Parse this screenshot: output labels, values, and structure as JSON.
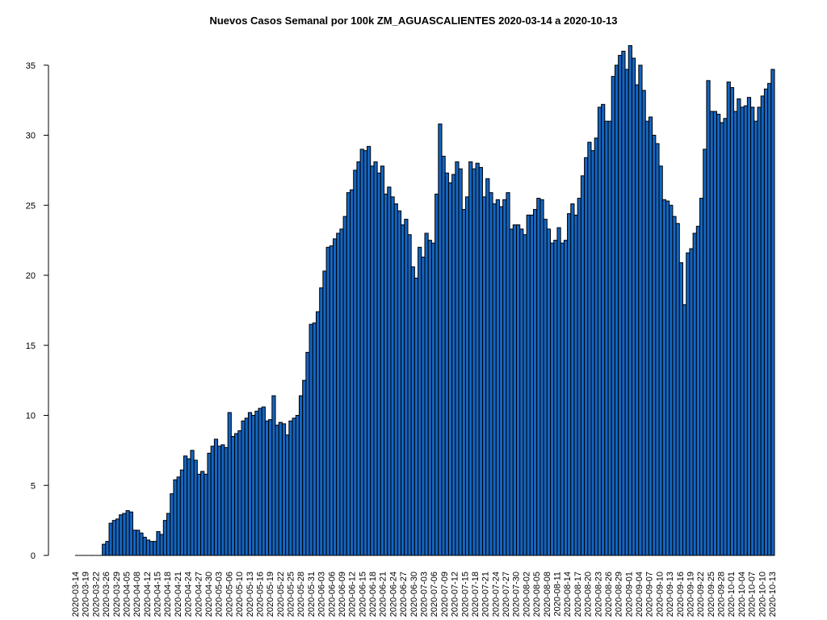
{
  "chart_data": {
    "type": "bar",
    "title": "Nuevos Casos Semanal por 100k ZM_AGUASCALIENTES 2020-03-14 a 2020-10-13",
    "xlabel": "",
    "ylabel": "",
    "ylim": [
      0,
      36.5
    ],
    "y_ticks": [
      0,
      5,
      10,
      15,
      20,
      25,
      30,
      35
    ],
    "x_tick_labels": [
      "2020-03-14",
      "2020-03-19",
      "2020-03-22",
      "2020-03-26",
      "2020-03-29",
      "2020-04-05",
      "2020-04-08",
      "2020-04-12",
      "2020-04-15",
      "2020-04-18",
      "2020-04-21",
      "2020-04-24",
      "2020-04-27",
      "2020-04-30",
      "2020-05-03",
      "2020-05-06",
      "2020-05-10",
      "2020-05-13",
      "2020-05-16",
      "2020-05-19",
      "2020-05-22",
      "2020-05-25",
      "2020-05-28",
      "2020-05-31",
      "2020-06-03",
      "2020-06-06",
      "2020-06-09",
      "2020-06-12",
      "2020-06-15",
      "2020-06-18",
      "2020-06-21",
      "2020-06-24",
      "2020-06-27",
      "2020-06-30",
      "2020-07-03",
      "2020-07-06",
      "2020-07-09",
      "2020-07-12",
      "2020-07-15",
      "2020-07-18",
      "2020-07-21",
      "2020-07-24",
      "2020-07-27",
      "2020-07-30",
      "2020-08-02",
      "2020-08-05",
      "2020-08-08",
      "2020-08-11",
      "2020-08-14",
      "2020-08-17",
      "2020-08-20",
      "2020-08-23",
      "2020-08-26",
      "2020-08-29",
      "2020-09-01",
      "2020-09-04",
      "2020-09-07",
      "2020-09-10",
      "2020-09-13",
      "2020-09-16",
      "2020-09-19",
      "2020-09-22",
      "2020-09-25",
      "2020-09-28",
      "2020-10-01",
      "2020-10-04",
      "2020-10-07",
      "2020-10-10",
      "2020-10-13"
    ],
    "grid": false,
    "bar_color": "#1565c0",
    "bar_edge_color": "#000000",
    "values": [
      0,
      0,
      0,
      0,
      0,
      0,
      0,
      0,
      0.8,
      1.0,
      2.3,
      2.5,
      2.6,
      2.9,
      3.0,
      3.2,
      3.1,
      1.8,
      1.8,
      1.6,
      1.3,
      1.1,
      1.0,
      1.0,
      1.7,
      1.5,
      2.5,
      3.0,
      4.4,
      5.4,
      5.6,
      6.1,
      7.1,
      6.9,
      7.5,
      6.8,
      5.8,
      6.0,
      5.8,
      7.3,
      7.8,
      8.3,
      7.8,
      7.9,
      7.7,
      10.2,
      8.5,
      8.7,
      8.9,
      9.6,
      9.8,
      10.2,
      10.0,
      10.3,
      10.5,
      10.6,
      9.6,
      9.7,
      11.4,
      9.3,
      9.5,
      9.4,
      8.6,
      9.6,
      9.8,
      10.0,
      11.4,
      12.5,
      14.5,
      16.5,
      16.6,
      17.4,
      19.1,
      20.3,
      22.0,
      22.1,
      22.6,
      23.0,
      23.3,
      24.2,
      25.9,
      26.1,
      27.5,
      28.1,
      29.0,
      28.9,
      29.2,
      27.8,
      28.1,
      27.3,
      27.8,
      25.8,
      26.3,
      25.6,
      25.1,
      24.6,
      23.6,
      24.0,
      22.9,
      20.6,
      19.8,
      22.0,
      21.3,
      23.0,
      22.5,
      22.3,
      25.8,
      30.8,
      28.5,
      27.3,
      26.6,
      27.2,
      28.1,
      27.6,
      24.7,
      25.6,
      28.1,
      27.6,
      28.0,
      27.7,
      25.6,
      26.9,
      25.9,
      25.1,
      25.4,
      24.9,
      25.4,
      25.9,
      23.3,
      23.6,
      23.6,
      23.3,
      22.9,
      24.3,
      24.3,
      24.7,
      25.5,
      25.4,
      24.0,
      23.3,
      22.3,
      22.5,
      23.4,
      22.3,
      22.5,
      24.4,
      25.1,
      24.3,
      25.5,
      27.1,
      28.4,
      29.5,
      28.9,
      29.8,
      32.0,
      32.2,
      31.0,
      31.0,
      34.2,
      35.0,
      35.7,
      36.0,
      34.7,
      36.4,
      35.5,
      33.6,
      35.0,
      33.2,
      31.0,
      31.3,
      30.0,
      29.4,
      27.8,
      25.4,
      25.3,
      25.0,
      24.2,
      23.7,
      20.9,
      17.9,
      21.6,
      21.9,
      23.0,
      23.5,
      25.5,
      29.0,
      33.9,
      31.7,
      31.7,
      31.5,
      30.9,
      31.2,
      33.8,
      33.4,
      31.7,
      32.6,
      32.0,
      32.1,
      32.7,
      32.0,
      31.0,
      32.0,
      32.8,
      33.3,
      33.7,
      34.7
    ]
  }
}
